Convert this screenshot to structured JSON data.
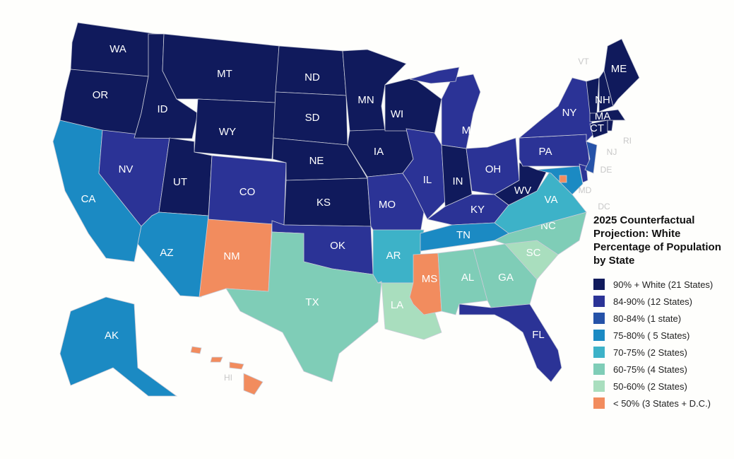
{
  "title": "2025 Counterfactual Projection: White Percentage of Population by State",
  "legend": [
    {
      "label": "90% + White (21 States)",
      "color": "#101a5c"
    },
    {
      "label": "84-90% (12 States)",
      "color": "#2b3396"
    },
    {
      "label": "80-84% (1 state)",
      "color": "#2552a8"
    },
    {
      "label": "75-80% ( 5 States)",
      "color": "#1b8ac3"
    },
    {
      "label": "70-75% (2 States)",
      "color": "#3db2c8"
    },
    {
      "label": "60-75% (4 States)",
      "color": "#7fcdb7"
    },
    {
      "label": "50-60% (2 States)",
      "color": "#a9debe"
    },
    {
      "label": "< 50% (3 States + D.C.)",
      "color": "#f28c5e"
    }
  ],
  "states": [
    {
      "label": "WA",
      "color": "#101a5c"
    },
    {
      "label": "OR",
      "color": "#101a5c"
    },
    {
      "label": "CA",
      "color": "#1b8ac3"
    },
    {
      "label": "NV",
      "color": "#2b3396"
    },
    {
      "label": "ID",
      "color": "#101a5c"
    },
    {
      "label": "MT",
      "color": "#101a5c"
    },
    {
      "label": "WY",
      "color": "#101a5c"
    },
    {
      "label": "UT",
      "color": "#101a5c"
    },
    {
      "label": "AZ",
      "color": "#1b8ac3"
    },
    {
      "label": "NM",
      "color": "#f28c5e"
    },
    {
      "label": "CO",
      "color": "#2b3396"
    },
    {
      "label": "ND",
      "color": "#101a5c"
    },
    {
      "label": "SD",
      "color": "#101a5c"
    },
    {
      "label": "NE",
      "color": "#101a5c"
    },
    {
      "label": "KS",
      "color": "#101a5c"
    },
    {
      "label": "OK",
      "color": "#2b3396"
    },
    {
      "label": "TX",
      "color": "#7fcdb7"
    },
    {
      "label": "MN",
      "color": "#101a5c"
    },
    {
      "label": "IA",
      "color": "#101a5c"
    },
    {
      "label": "MO",
      "color": "#2b3396"
    },
    {
      "label": "AR",
      "color": "#3db2c8"
    },
    {
      "label": "LA",
      "color": "#a9debe"
    },
    {
      "label": "WI",
      "color": "#101a5c"
    },
    {
      "label": "IL",
      "color": "#2b3396"
    },
    {
      "label": "MI",
      "color": "#2b3396"
    },
    {
      "label": "IN",
      "color": "#101a5c"
    },
    {
      "label": "OH",
      "color": "#2b3396"
    },
    {
      "label": "KY",
      "color": "#2b3396"
    },
    {
      "label": "TN",
      "color": "#1b8ac3"
    },
    {
      "label": "MS",
      "color": "#f28c5e"
    },
    {
      "label": "AL",
      "color": "#7fcdb7"
    },
    {
      "label": "GA",
      "color": "#7fcdb7"
    },
    {
      "label": "FL",
      "color": "#2b3396"
    },
    {
      "label": "SC",
      "color": "#a9debe"
    },
    {
      "label": "NC",
      "color": "#7fcdb7"
    },
    {
      "label": "VA",
      "color": "#3db2c8"
    },
    {
      "label": "WV",
      "color": "#101a5c"
    },
    {
      "label": "PA",
      "color": "#2b3396"
    },
    {
      "label": "NY",
      "color": "#2b3396"
    },
    {
      "label": "MD",
      "color": "#1b8ac3"
    },
    {
      "label": "DE",
      "color": "#2b3396"
    },
    {
      "label": "NJ",
      "color": "#2552a8"
    },
    {
      "label": "CT",
      "color": "#101a5c"
    },
    {
      "label": "RI",
      "color": "#101a5c"
    },
    {
      "label": "MA",
      "color": "#101a5c"
    },
    {
      "label": "VT",
      "color": "#101a5c"
    },
    {
      "label": "NH",
      "color": "#101a5c"
    },
    {
      "label": "ME",
      "color": "#101a5c"
    },
    {
      "label": "AK",
      "color": "#1b8ac3"
    },
    {
      "label": "HI",
      "color": "#f28c5e"
    },
    {
      "label": "DC",
      "color": "#f28c5e"
    }
  ]
}
